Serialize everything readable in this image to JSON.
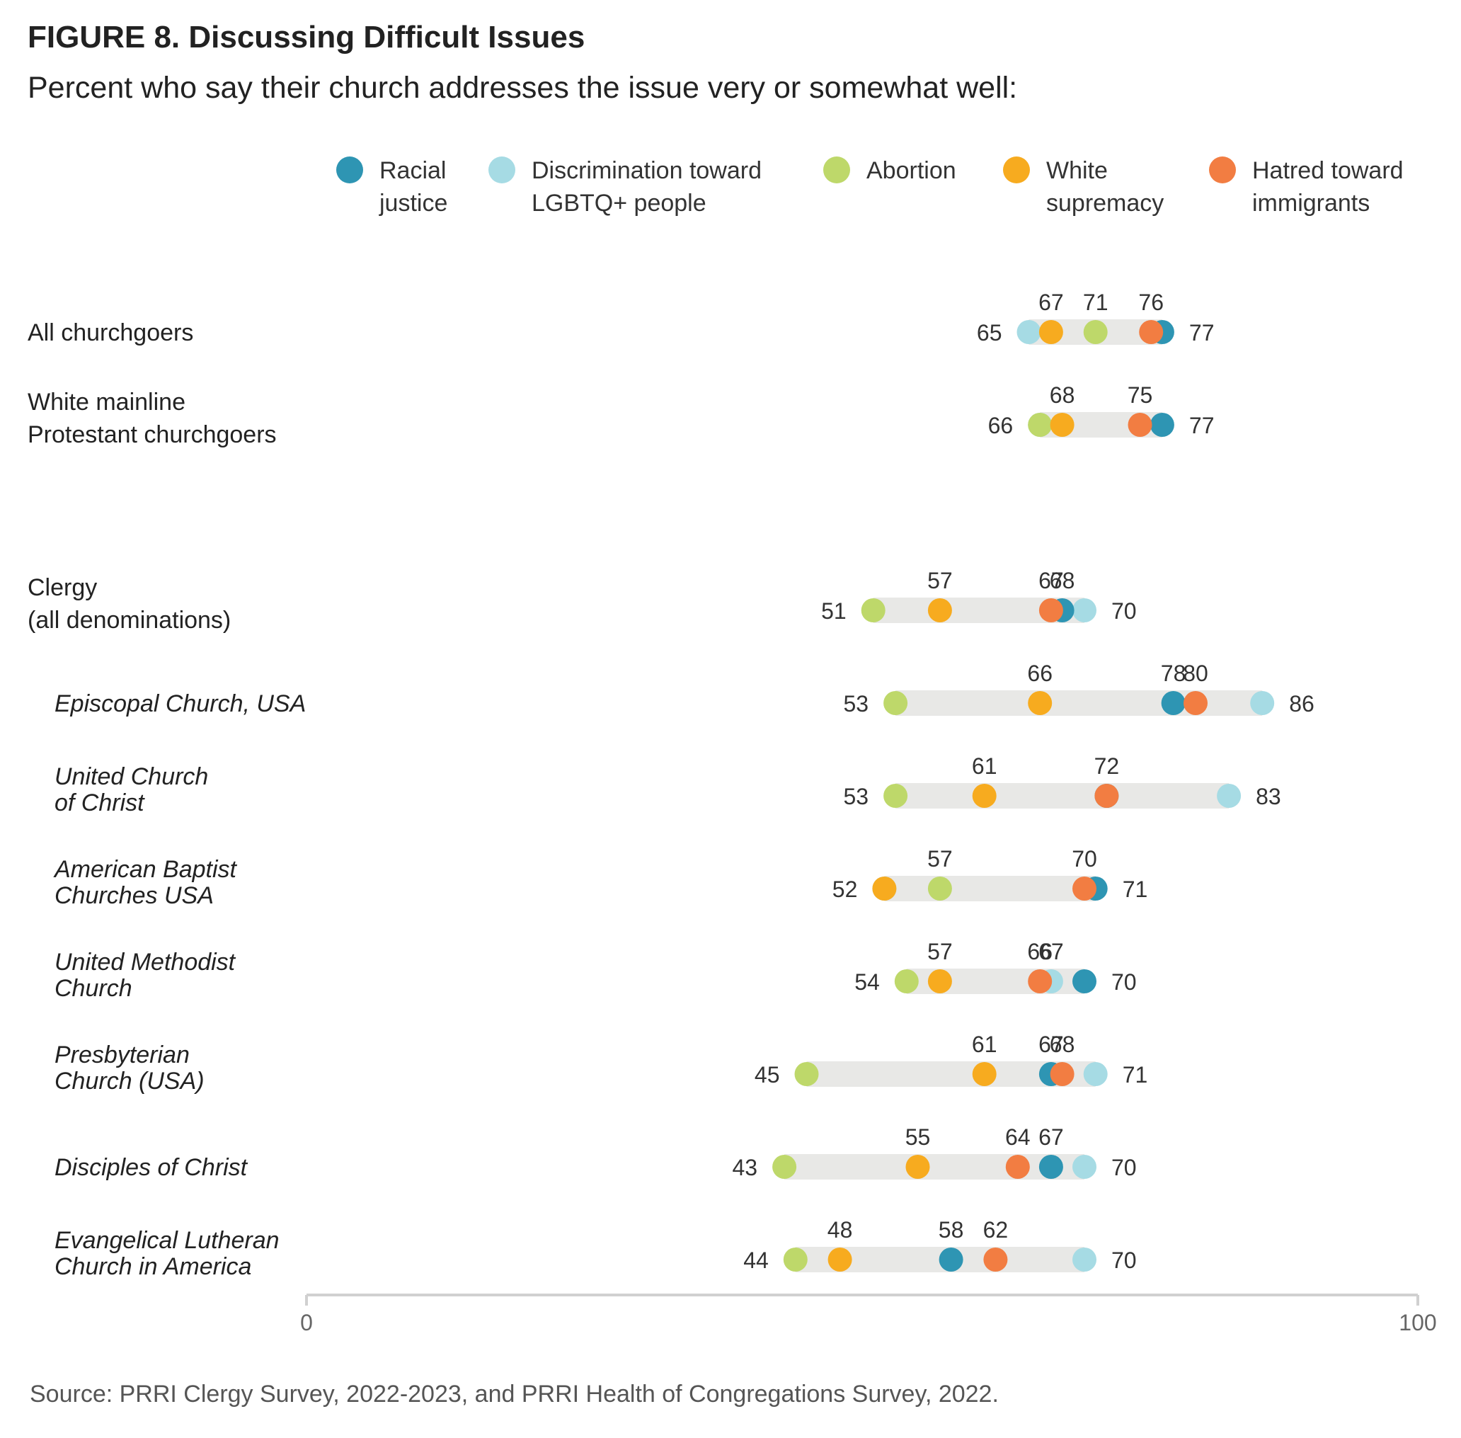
{
  "title": "FIGURE 8.  Discussing Difficult Issues",
  "subtitle": "Percent who say their church addresses the issue very or somewhat well:",
  "source": "Source: PRRI Clergy Survey, 2022-2023, and PRRI Health of Congregations Survey, 2022.",
  "chart_data": {
    "type": "dot",
    "xlim": [
      0,
      100
    ],
    "x_ticks": [
      "0",
      "100"
    ],
    "legend_position": "top",
    "series": [
      {
        "key": "racial",
        "name_lines": [
          "Racial",
          "justice"
        ],
        "color": "#2e95b3"
      },
      {
        "key": "lgbtq",
        "name_lines": [
          "Discrimination toward",
          "LGBTQ+ people"
        ],
        "color": "#a6dbe4"
      },
      {
        "key": "abortion",
        "name_lines": [
          "Abortion"
        ],
        "color": "#bed86a"
      },
      {
        "key": "white",
        "name_lines": [
          "White",
          "supremacy"
        ],
        "color": "#f7ab1f"
      },
      {
        "key": "immigrants",
        "name_lines": [
          "Hatred toward",
          "immigrants"
        ],
        "color": "#f27d42"
      }
    ],
    "rows": [
      {
        "label_lines": [
          "All churchgoers"
        ],
        "italic": false,
        "values": {
          "racial": 77,
          "lgbtq": 65,
          "abortion": 71,
          "white": 67,
          "immigrants": 76
        },
        "range_labels": [
          "65",
          "77"
        ],
        "top_labels": [
          "67",
          "71",
          "76"
        ]
      },
      {
        "label_lines": [
          "White mainline",
          "Protestant churchgoers"
        ],
        "italic": false,
        "values": {
          "racial": 77,
          "lgbtq": 66,
          "abortion": 66,
          "white": 68,
          "immigrants": 75
        },
        "range_labels": [
          "66",
          "77"
        ],
        "top_labels": [
          "68",
          "75"
        ]
      },
      {
        "label_lines": [
          "Clergy",
          "(all denominations)"
        ],
        "italic": false,
        "values": {
          "racial": 68,
          "lgbtq": 70,
          "abortion": 51,
          "white": 57,
          "immigrants": 67
        },
        "range_labels": [
          "51",
          "70"
        ],
        "top_labels": [
          "57",
          "67",
          "68"
        ]
      },
      {
        "label_lines": [
          "Episcopal Church, USA"
        ],
        "italic": true,
        "values": {
          "racial": 78,
          "lgbtq": 86,
          "abortion": 53,
          "white": 66,
          "immigrants": 80
        },
        "range_labels": [
          "53",
          "86"
        ],
        "top_labels": [
          "66",
          "78",
          "80"
        ]
      },
      {
        "label_lines": [
          "United Church",
          "of Christ"
        ],
        "italic": true,
        "values": {
          "racial": 72,
          "lgbtq": 83,
          "abortion": 53,
          "white": 61,
          "immigrants": 72
        },
        "range_labels": [
          "53",
          "83"
        ],
        "top_labels": [
          "61",
          "72"
        ]
      },
      {
        "label_lines": [
          "American Baptist",
          "Churches USA"
        ],
        "italic": true,
        "values": {
          "racial": 71,
          "lgbtq": 52,
          "abortion": 57,
          "white": 52,
          "immigrants": 70
        },
        "range_labels": [
          "52",
          "71"
        ],
        "top_labels": [
          "57",
          "70"
        ]
      },
      {
        "label_lines": [
          "United Methodist",
          "Church"
        ],
        "italic": true,
        "values": {
          "racial": 70,
          "lgbtq": 67,
          "abortion": 54,
          "white": 57,
          "immigrants": 66
        },
        "range_labels": [
          "54",
          "70"
        ],
        "top_labels": [
          "57",
          "66",
          "67"
        ]
      },
      {
        "label_lines": [
          "Presbyterian",
          "Church (USA)"
        ],
        "italic": true,
        "values": {
          "racial": 67,
          "lgbtq": 71,
          "abortion": 45,
          "white": 61,
          "immigrants": 68
        },
        "range_labels": [
          "45",
          "71"
        ],
        "top_labels": [
          "61",
          "67",
          "68"
        ]
      },
      {
        "label_lines": [
          "Disciples of Christ"
        ],
        "italic": true,
        "values": {
          "racial": 67,
          "lgbtq": 70,
          "abortion": 43,
          "white": 55,
          "immigrants": 64
        },
        "range_labels": [
          "43",
          "70"
        ],
        "top_labels": [
          "55",
          "64",
          "67"
        ]
      },
      {
        "label_lines": [
          "Evangelical Lutheran",
          "Church in America"
        ],
        "italic": true,
        "values": {
          "racial": 58,
          "lgbtq": 70,
          "abortion": 44,
          "white": 48,
          "immigrants": 62
        },
        "range_labels": [
          "44",
          "70"
        ],
        "top_labels": [
          "48",
          "58",
          "62"
        ]
      }
    ]
  }
}
